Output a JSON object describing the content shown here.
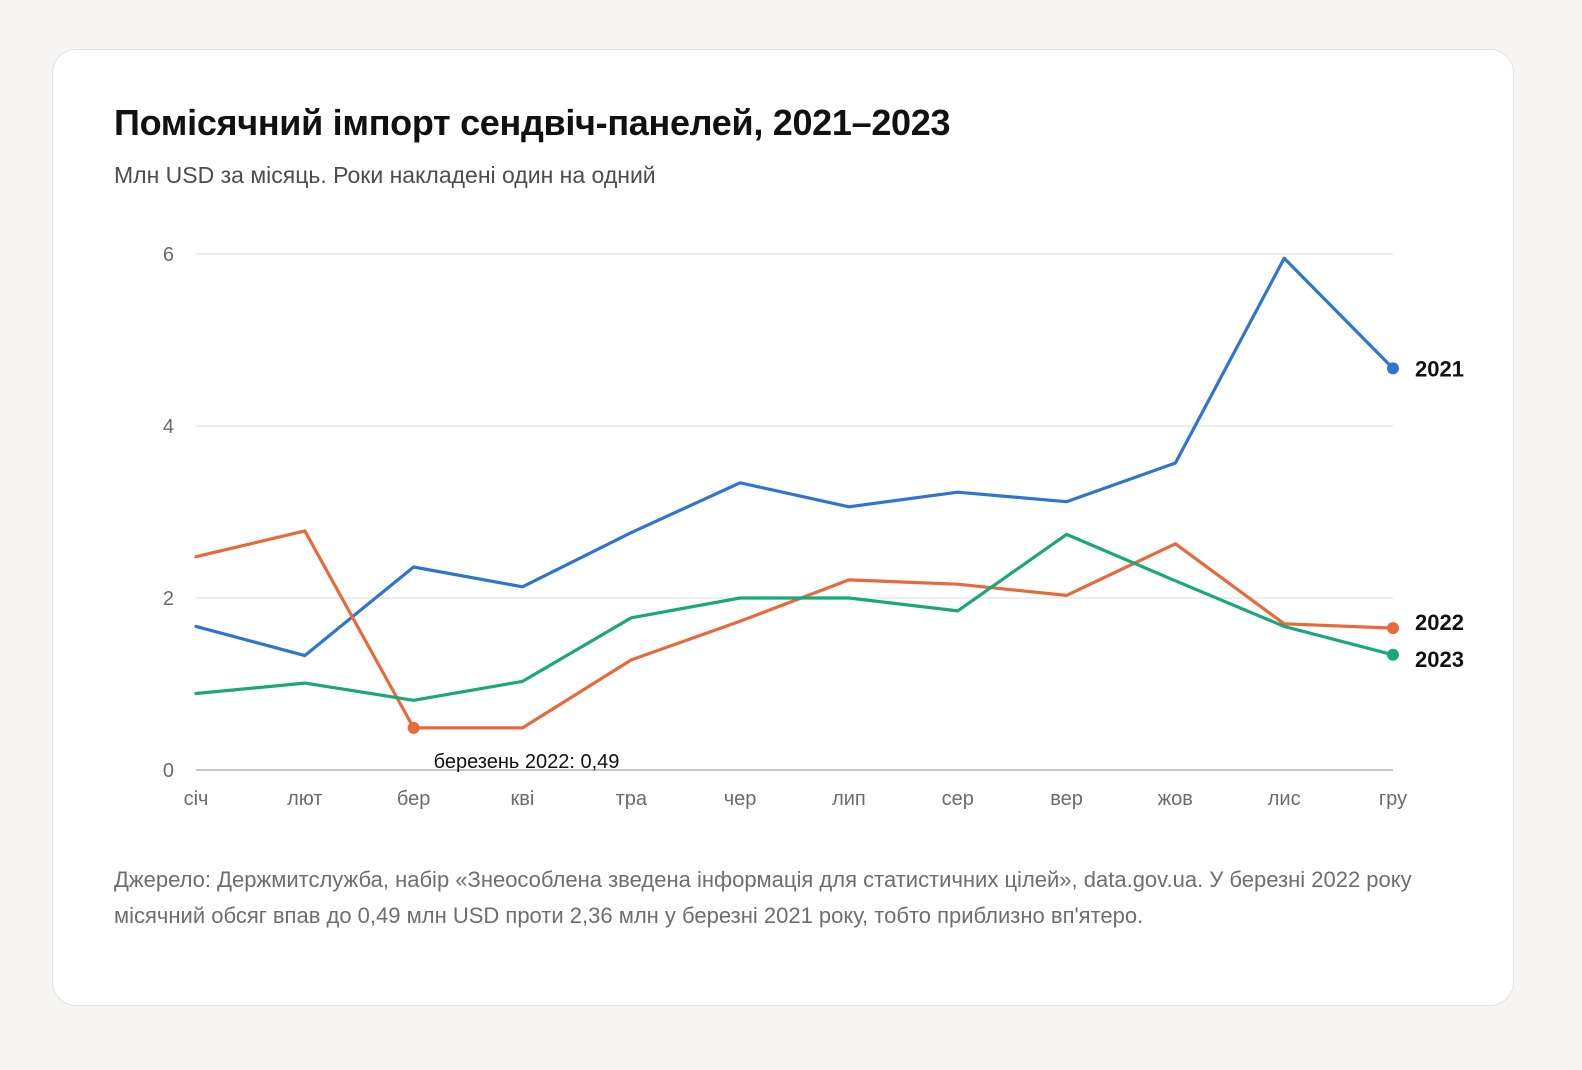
{
  "title": "Помісячний імпорт сендвіч-панелей, 2021–2023",
  "subtitle": "Млн USD за місяць. Роки накладені один на одний",
  "footnote": "Джерело: Держмитслужба, набір «Знеособлена зведена інформація для статистичних цілей», data.gov.ua. У березні 2022 року місячний обсяг впав до 0,49 млн USD проти 2,36 млн у березні 2021 року, тобто приблизно вп'ятеро.",
  "colors": {
    "2021": "#2f74d0",
    "2022": "#e8693a",
    "2023": "#1aa77a",
    "grid": "#e3e3e3",
    "axis": "#b5b5b5"
  },
  "chart_data": {
    "type": "line",
    "title": "Помісячний імпорт сендвіч-панелей, 2021–2023",
    "ylabel": "",
    "xlabel": "",
    "categories": [
      "січ",
      "лют",
      "бер",
      "кві",
      "тра",
      "чер",
      "лип",
      "сер",
      "вер",
      "жов",
      "лис",
      "гру"
    ],
    "ylim": [
      0,
      6
    ],
    "yticks": [
      "0",
      "2",
      "4",
      "6"
    ],
    "grid": true,
    "legend": "inline labels at line ends (right)",
    "series": [
      {
        "name": "2021",
        "color": "#2f74d0",
        "values": [
          1.67,
          1.33,
          2.36,
          2.13,
          2.76,
          3.34,
          3.06,
          3.23,
          3.12,
          3.57,
          5.95,
          4.67
        ]
      },
      {
        "name": "2022",
        "color": "#e8693a",
        "values": [
          2.48,
          2.78,
          0.49,
          0.49,
          1.28,
          1.73,
          2.21,
          2.16,
          2.03,
          2.63,
          1.7,
          1.65
        ]
      },
      {
        "name": "2023",
        "color": "#1aa77a",
        "values": [
          0.89,
          1.01,
          0.81,
          1.03,
          1.77,
          2.0,
          2.0,
          1.85,
          2.74,
          2.2,
          1.67,
          1.34
        ]
      }
    ],
    "annotations": [
      {
        "series": "2022",
        "category": "бер",
        "value": 0.49,
        "text": "березень 2022: 0,49"
      }
    ]
  }
}
